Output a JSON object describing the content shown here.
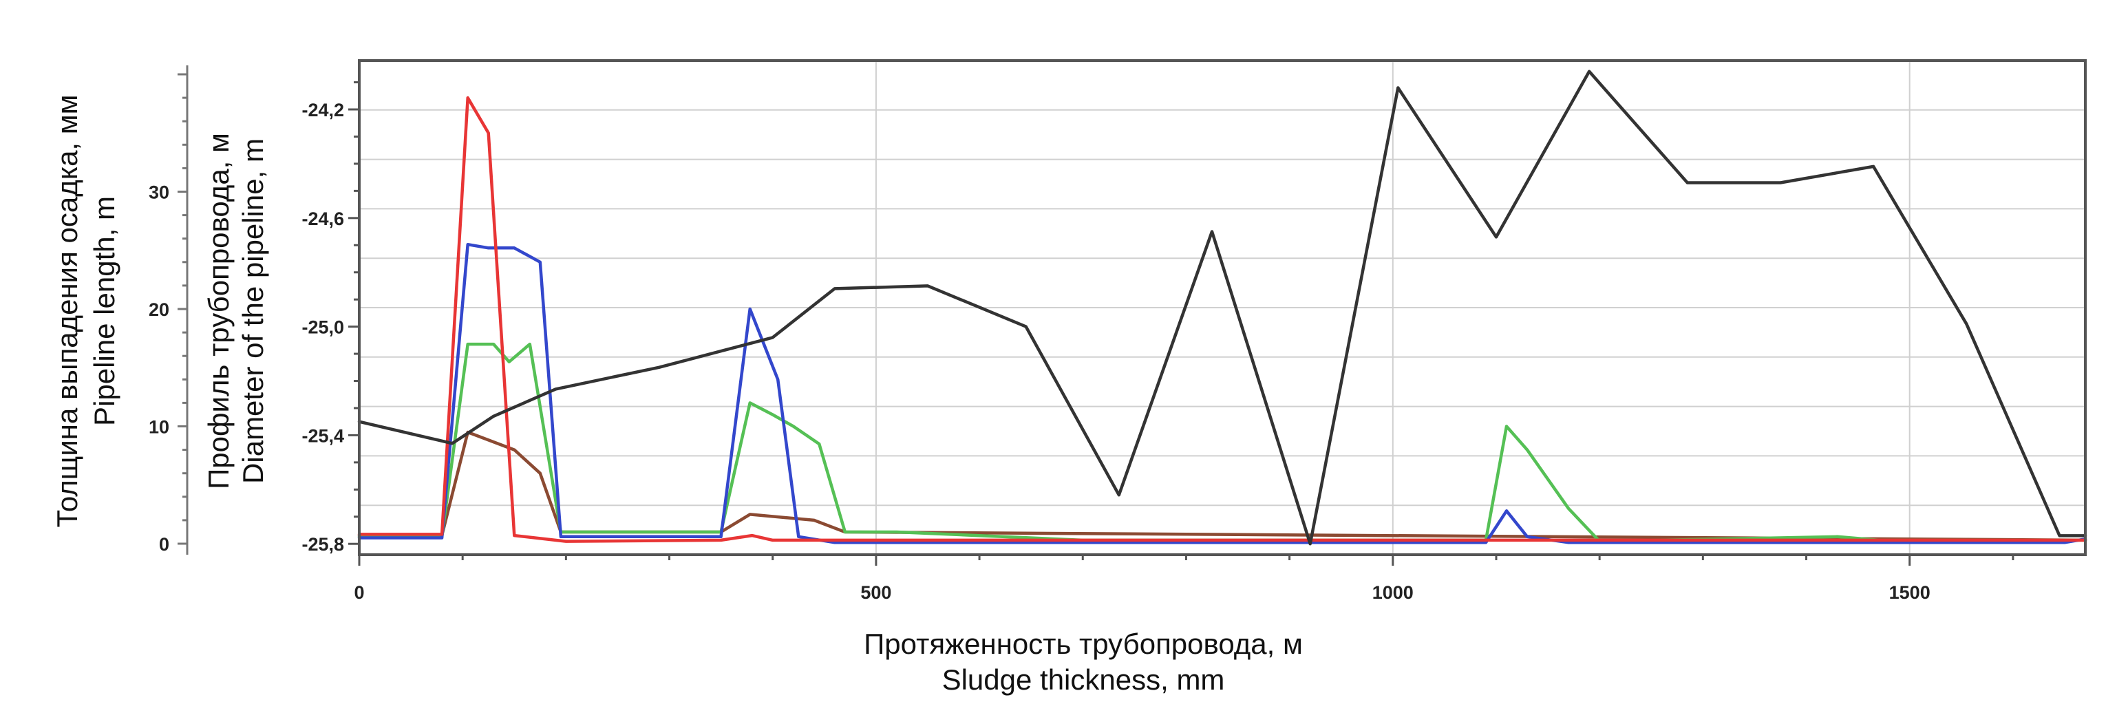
{
  "chart_data": {
    "type": "line",
    "xlabel": [
      "Протяженность трубопровода, м",
      "Sludge thickness, mm"
    ],
    "ylabel_left": [
      "Толщина выпадения осадка, мм",
      "Pipeline length, m"
    ],
    "ylabel_right": [
      "Профиль трубопровода, м",
      "Diameter of the pipeline, m"
    ],
    "xlim": [
      0,
      1670
    ],
    "ylim_left": [
      0,
      40
    ],
    "ylim_right": [
      -25.84,
      -24.02
    ],
    "x_ticks": [
      0,
      500,
      1000,
      1500
    ],
    "x_tick_labels": [
      "0",
      "500",
      "1000",
      "1500"
    ],
    "y_left_ticks": [
      0,
      10,
      20,
      30
    ],
    "y_left_tick_labels": [
      "0",
      "10",
      "20",
      "30"
    ],
    "y_right_ticks": [
      -25.8,
      -25.4,
      -25.0,
      -24.6,
      -24.2
    ],
    "y_right_tick_labels": [
      "-25,8",
      "-25,4",
      "-25,0",
      "-24,6",
      "-24,2"
    ],
    "grid": true,
    "legend": "none",
    "series": [
      {
        "color": "#333333",
        "axis": "right",
        "x": [
          0,
          90,
          130,
          190,
          290,
          400,
          460,
          550,
          645,
          735,
          825,
          920,
          1005,
          1100,
          1190,
          1285,
          1375,
          1465,
          1555,
          1645,
          1670
        ],
        "values": [
          -25.35,
          -25.43,
          -25.33,
          -25.23,
          -25.15,
          -25.04,
          -24.86,
          -24.85,
          -25.0,
          -25.62,
          -24.65,
          -25.8,
          -24.12,
          -24.67,
          -24.06,
          -24.47,
          -24.47,
          -24.41,
          -24.99,
          -25.77,
          -25.77
        ]
      },
      {
        "color": "#e83535",
        "axis": "left",
        "x": [
          0,
          80,
          105,
          125,
          150,
          200,
          350,
          380,
          400,
          460,
          1670
        ],
        "values": [
          0.8,
          0.8,
          38,
          35,
          0.7,
          0.2,
          0.3,
          0.7,
          0.3,
          0.3,
          0.3
        ]
      },
      {
        "color": "#3347cc",
        "axis": "left",
        "x": [
          0,
          80,
          105,
          125,
          150,
          175,
          195,
          350,
          378,
          405,
          425,
          460,
          1090,
          1110,
          1130,
          1170,
          1650,
          1670
        ],
        "values": [
          0.5,
          0.5,
          25.5,
          25.2,
          25.2,
          24,
          0.6,
          0.6,
          20,
          14,
          0.6,
          0.1,
          0.1,
          2.8,
          0.6,
          0.1,
          0.1,
          0.4
        ]
      },
      {
        "color": "#55c055",
        "axis": "left",
        "x": [
          0,
          80,
          105,
          130,
          145,
          165,
          195,
          350,
          378,
          400,
          420,
          445,
          470,
          520,
          700,
          1090,
          1110,
          1130,
          1170,
          1200,
          1430,
          1470,
          1670
        ],
        "values": [
          0.6,
          0.6,
          17,
          17,
          15.5,
          17,
          1,
          1,
          12,
          11,
          10,
          8.5,
          1,
          1,
          0.3,
          0.3,
          10,
          8,
          3,
          0.2,
          0.6,
          0.3,
          0.3
        ]
      },
      {
        "color": "#8b4a32",
        "axis": "left",
        "x": [
          0,
          80,
          105,
          150,
          175,
          195,
          350,
          378,
          440,
          470,
          1670
        ],
        "values": [
          0.7,
          0.7,
          9.5,
          8,
          6,
          1,
          1,
          2.5,
          2,
          1,
          0.3
        ]
      }
    ]
  }
}
